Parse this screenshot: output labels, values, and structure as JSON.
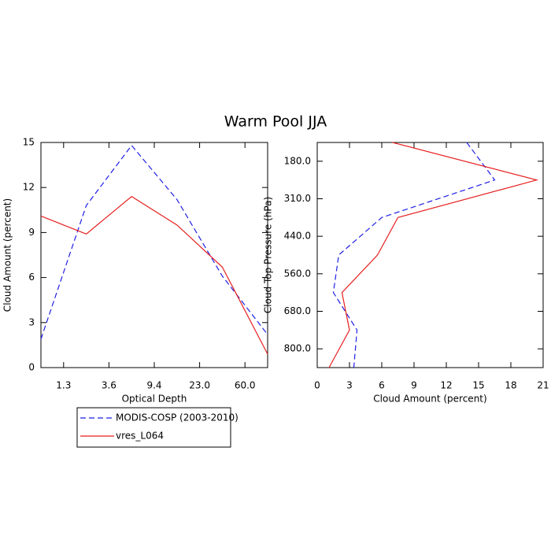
{
  "title": "Warm Pool JJA",
  "chart_data": [
    {
      "type": "line",
      "orientation": "vertical",
      "xlabel": "Optical Depth",
      "ylabel": "Cloud Amount (percent)",
      "x": [
        0,
        1,
        2,
        3,
        4,
        5
      ],
      "xlim": [
        0,
        5
      ],
      "xticks": [
        {
          "value": 0.5,
          "label": "1.3"
        },
        {
          "value": 1.5,
          "label": "3.6"
        },
        {
          "value": 2.5,
          "label": "9.4"
        },
        {
          "value": 3.5,
          "label": "23.0"
        },
        {
          "value": 4.5,
          "label": "60.0"
        }
      ],
      "ylim": [
        0,
        15
      ],
      "yticks": [
        0,
        3,
        6,
        9,
        12,
        15
      ],
      "series": [
        {
          "name": "MODIS-COSP (2003-2010)",
          "color": "#1f1fe6",
          "dash": true,
          "values": [
            1.9,
            10.8,
            14.8,
            11.2,
            6.1,
            2.2
          ]
        },
        {
          "name": "vres_L064",
          "color": "#e61f1f",
          "dash": false,
          "values": [
            10.1,
            8.9,
            11.4,
            9.5,
            6.7,
            0.9
          ]
        }
      ]
    },
    {
      "type": "line",
      "orientation": "horizontal",
      "xlabel": "Cloud Amount (percent)",
      "ylabel": "Cloud Top Pressure (hPa)",
      "y": [
        0,
        1,
        2,
        3,
        4,
        5,
        6
      ],
      "ylim": [
        6,
        0
      ],
      "yticks": [
        {
          "value": 0.5,
          "label": "180.0"
        },
        {
          "value": 1.5,
          "label": "310.0"
        },
        {
          "value": 2.5,
          "label": "440.0"
        },
        {
          "value": 3.5,
          "label": "560.0"
        },
        {
          "value": 4.5,
          "label": "680.0"
        },
        {
          "value": 5.5,
          "label": "800.0"
        }
      ],
      "xlim": [
        0,
        21
      ],
      "xticks": [
        0,
        3,
        6,
        9,
        12,
        15,
        18,
        21
      ],
      "series": [
        {
          "color": "#1f1fe6",
          "dash": true,
          "values": [
            13.9,
            16.5,
            6.0,
            2.0,
            1.5,
            3.7,
            3.4
          ]
        },
        {
          "color": "#e61f1f",
          "dash": false,
          "values": [
            7.0,
            20.4,
            7.5,
            5.6,
            2.3,
            3.0,
            1.1
          ]
        }
      ]
    }
  ]
}
